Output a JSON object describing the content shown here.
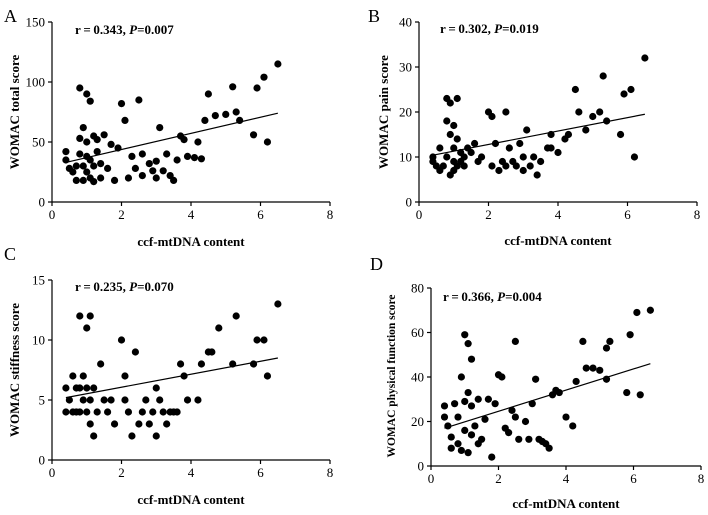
{
  "chart_data": [
    {
      "type": "scatter",
      "panel": "A",
      "annotation": {
        "r": "r = 0.343, ",
        "p_label": "P",
        "p_value": "=0.007"
      },
      "xlabel": "ccf-mtDNA content",
      "ylabel": "WOMAC total score",
      "xlim": [
        0,
        8
      ],
      "ylim": [
        0,
        150
      ],
      "xticks": [
        0,
        2,
        4,
        6,
        8
      ],
      "yticks": [
        0,
        50,
        100,
        150
      ],
      "trend": {
        "x": [
          0.4,
          6.5
        ],
        "y": [
          33,
          74
        ]
      },
      "points": [
        [
          0.4,
          42
        ],
        [
          0.4,
          35
        ],
        [
          0.5,
          28
        ],
        [
          0.6,
          25
        ],
        [
          0.7,
          30
        ],
        [
          0.7,
          18
        ],
        [
          0.8,
          95
        ],
        [
          0.8,
          53
        ],
        [
          0.8,
          40
        ],
        [
          0.9,
          62
        ],
        [
          0.9,
          30
        ],
        [
          0.9,
          18
        ],
        [
          1.0,
          90
        ],
        [
          1.0,
          50
        ],
        [
          1.0,
          38
        ],
        [
          1.0,
          25
        ],
        [
          1.1,
          84
        ],
        [
          1.1,
          35
        ],
        [
          1.1,
          20
        ],
        [
          1.2,
          55
        ],
        [
          1.2,
          30
        ],
        [
          1.2,
          17
        ],
        [
          1.3,
          52
        ],
        [
          1.3,
          42
        ],
        [
          1.4,
          32
        ],
        [
          1.4,
          20
        ],
        [
          1.5,
          56
        ],
        [
          1.6,
          28
        ],
        [
          1.7,
          48
        ],
        [
          1.8,
          18
        ],
        [
          1.9,
          45
        ],
        [
          2.0,
          82
        ],
        [
          2.1,
          68
        ],
        [
          2.2,
          20
        ],
        [
          2.3,
          38
        ],
        [
          2.4,
          28
        ],
        [
          2.5,
          85
        ],
        [
          2.6,
          40
        ],
        [
          2.6,
          22
        ],
        [
          2.8,
          32
        ],
        [
          2.9,
          26
        ],
        [
          3.0,
          34
        ],
        [
          3.0,
          20
        ],
        [
          3.1,
          62
        ],
        [
          3.2,
          26
        ],
        [
          3.3,
          40
        ],
        [
          3.4,
          22
        ],
        [
          3.5,
          18
        ],
        [
          3.6,
          35
        ],
        [
          3.7,
          55
        ],
        [
          3.8,
          52
        ],
        [
          3.9,
          38
        ],
        [
          4.1,
          37
        ],
        [
          4.2,
          50
        ],
        [
          4.3,
          36
        ],
        [
          4.4,
          68
        ],
        [
          4.5,
          90
        ],
        [
          4.7,
          72
        ],
        [
          5.0,
          73
        ],
        [
          5.2,
          96
        ],
        [
          5.3,
          75
        ],
        [
          5.4,
          68
        ],
        [
          5.8,
          56
        ],
        [
          5.9,
          95
        ],
        [
          6.1,
          104
        ],
        [
          6.2,
          50
        ],
        [
          6.5,
          115
        ]
      ]
    },
    {
      "type": "scatter",
      "panel": "B",
      "annotation": {
        "r": "r = 0.302, ",
        "p_label": "P",
        "p_value": "=0.019"
      },
      "xlabel": "ccf-mtDNA content",
      "ylabel": "WOMAC pain score",
      "xlim": [
        0,
        8
      ],
      "ylim": [
        0,
        40
      ],
      "xticks": [
        0,
        2,
        4,
        6,
        8
      ],
      "yticks": [
        0,
        10,
        20,
        30,
        40
      ],
      "trend": {
        "x": [
          0.4,
          6.5
        ],
        "y": [
          10.4,
          19.5
        ]
      },
      "points": [
        [
          0.4,
          9
        ],
        [
          0.4,
          10
        ],
        [
          0.5,
          8
        ],
        [
          0.6,
          12
        ],
        [
          0.6,
          7
        ],
        [
          0.7,
          8
        ],
        [
          0.8,
          23
        ],
        [
          0.8,
          18
        ],
        [
          0.8,
          10
        ],
        [
          0.9,
          22
        ],
        [
          0.9,
          15
        ],
        [
          0.9,
          6
        ],
        [
          1.0,
          17
        ],
        [
          1.0,
          12
        ],
        [
          1.0,
          9
        ],
        [
          1.0,
          7
        ],
        [
          1.1,
          23
        ],
        [
          1.1,
          14
        ],
        [
          1.1,
          8
        ],
        [
          1.2,
          11
        ],
        [
          1.2,
          9
        ],
        [
          1.3,
          10
        ],
        [
          1.3,
          8
        ],
        [
          1.4,
          12
        ],
        [
          1.5,
          11
        ],
        [
          1.6,
          13
        ],
        [
          1.7,
          9
        ],
        [
          1.8,
          10
        ],
        [
          2.0,
          20
        ],
        [
          2.1,
          19
        ],
        [
          2.1,
          8
        ],
        [
          2.2,
          13
        ],
        [
          2.3,
          7
        ],
        [
          2.4,
          9
        ],
        [
          2.5,
          20
        ],
        [
          2.5,
          8
        ],
        [
          2.6,
          12
        ],
        [
          2.7,
          9
        ],
        [
          2.8,
          8
        ],
        [
          2.9,
          13
        ],
        [
          3.0,
          10
        ],
        [
          3.0,
          7
        ],
        [
          3.1,
          16
        ],
        [
          3.2,
          8
        ],
        [
          3.3,
          10
        ],
        [
          3.4,
          6
        ],
        [
          3.5,
          9
        ],
        [
          3.7,
          12
        ],
        [
          3.8,
          15
        ],
        [
          3.8,
          12
        ],
        [
          4.0,
          11
        ],
        [
          4.2,
          14
        ],
        [
          4.3,
          15
        ],
        [
          4.5,
          25
        ],
        [
          4.6,
          20
        ],
        [
          4.8,
          16
        ],
        [
          5.0,
          19
        ],
        [
          5.2,
          20
        ],
        [
          5.3,
          28
        ],
        [
          5.4,
          18
        ],
        [
          5.8,
          15
        ],
        [
          5.9,
          24
        ],
        [
          6.1,
          25
        ],
        [
          6.2,
          10
        ],
        [
          6.5,
          32
        ]
      ]
    },
    {
      "type": "scatter",
      "panel": "C",
      "annotation": {
        "r": "r = 0.235, ",
        "p_label": "P",
        "p_value": "=0.070"
      },
      "xlabel": "ccf-mtDNA content",
      "ylabel": "WOMAC stiffness score",
      "xlim": [
        0,
        8
      ],
      "ylim": [
        0,
        15
      ],
      "xticks": [
        0,
        2,
        4,
        6,
        8
      ],
      "yticks": [
        0,
        5,
        10,
        15
      ],
      "trend": {
        "x": [
          0.4,
          6.5
        ],
        "y": [
          5.2,
          8.5
        ]
      },
      "points": [
        [
          0.4,
          6
        ],
        [
          0.4,
          4
        ],
        [
          0.5,
          5
        ],
        [
          0.6,
          7
        ],
        [
          0.6,
          4
        ],
        [
          0.7,
          6
        ],
        [
          0.7,
          4
        ],
        [
          0.8,
          12
        ],
        [
          0.8,
          6
        ],
        [
          0.8,
          4
        ],
        [
          0.9,
          7
        ],
        [
          0.9,
          5
        ],
        [
          1.0,
          11
        ],
        [
          1.0,
          6
        ],
        [
          1.0,
          4
        ],
        [
          1.1,
          12
        ],
        [
          1.1,
          5
        ],
        [
          1.1,
          3
        ],
        [
          1.2,
          6
        ],
        [
          1.2,
          2
        ],
        [
          1.3,
          4
        ],
        [
          1.4,
          8
        ],
        [
          1.5,
          5
        ],
        [
          1.6,
          4
        ],
        [
          1.7,
          5
        ],
        [
          1.8,
          3
        ],
        [
          2.0,
          10
        ],
        [
          2.1,
          7
        ],
        [
          2.1,
          5
        ],
        [
          2.2,
          4
        ],
        [
          2.3,
          2
        ],
        [
          2.4,
          9
        ],
        [
          2.5,
          3
        ],
        [
          2.6,
          4
        ],
        [
          2.7,
          5
        ],
        [
          2.8,
          3
        ],
        [
          2.9,
          4
        ],
        [
          3.0,
          2
        ],
        [
          3.0,
          6
        ],
        [
          3.1,
          5
        ],
        [
          3.2,
          4
        ],
        [
          3.3,
          3
        ],
        [
          3.4,
          4
        ],
        [
          3.5,
          4
        ],
        [
          3.6,
          4
        ],
        [
          3.7,
          8
        ],
        [
          3.8,
          7
        ],
        [
          3.9,
          5
        ],
        [
          4.2,
          5
        ],
        [
          4.3,
          8
        ],
        [
          4.5,
          9
        ],
        [
          4.6,
          9
        ],
        [
          4.8,
          11
        ],
        [
          5.2,
          8
        ],
        [
          5.3,
          12
        ],
        [
          5.8,
          8
        ],
        [
          5.9,
          10
        ],
        [
          6.1,
          10
        ],
        [
          6.2,
          7
        ],
        [
          6.5,
          13
        ]
      ]
    },
    {
      "type": "scatter",
      "panel": "D",
      "annotation": {
        "r": "r = 0.366, ",
        "p_label": "P",
        "p_value": "=0.004"
      },
      "xlabel": "ccf-mtDNA content",
      "ylabel": "WOMAC physical function score",
      "xlim": [
        0,
        8
      ],
      "ylim": [
        0,
        80
      ],
      "xticks": [
        0,
        2,
        4,
        6,
        8
      ],
      "yticks": [
        0,
        20,
        40,
        60,
        80
      ],
      "trend": {
        "x": [
          0.4,
          6.5
        ],
        "y": [
          17,
          46
        ]
      },
      "points": [
        [
          0.4,
          27
        ],
        [
          0.4,
          22
        ],
        [
          0.5,
          18
        ],
        [
          0.6,
          8
        ],
        [
          0.6,
          13
        ],
        [
          0.7,
          28
        ],
        [
          0.8,
          10
        ],
        [
          0.8,
          22
        ],
        [
          0.9,
          40
        ],
        [
          0.9,
          7
        ],
        [
          1.0,
          59
        ],
        [
          1.0,
          29
        ],
        [
          1.0,
          16
        ],
        [
          1.1,
          55
        ],
        [
          1.1,
          33
        ],
        [
          1.1,
          6
        ],
        [
          1.2,
          48
        ],
        [
          1.2,
          27
        ],
        [
          1.2,
          14
        ],
        [
          1.3,
          18
        ],
        [
          1.4,
          30
        ],
        [
          1.4,
          10
        ],
        [
          1.5,
          12
        ],
        [
          1.6,
          21
        ],
        [
          1.7,
          30
        ],
        [
          1.8,
          4
        ],
        [
          1.9,
          28
        ],
        [
          2.0,
          41
        ],
        [
          2.1,
          40
        ],
        [
          2.2,
          17
        ],
        [
          2.3,
          15
        ],
        [
          2.4,
          25
        ],
        [
          2.5,
          56
        ],
        [
          2.5,
          22
        ],
        [
          2.6,
          12
        ],
        [
          2.8,
          20
        ],
        [
          2.9,
          12
        ],
        [
          3.0,
          28
        ],
        [
          3.1,
          39
        ],
        [
          3.2,
          12
        ],
        [
          3.3,
          11
        ],
        [
          3.4,
          10
        ],
        [
          3.5,
          8
        ],
        [
          3.6,
          32
        ],
        [
          3.7,
          34
        ],
        [
          3.8,
          33
        ],
        [
          4.0,
          22
        ],
        [
          4.2,
          18
        ],
        [
          4.3,
          38
        ],
        [
          4.5,
          56
        ],
        [
          4.6,
          44
        ],
        [
          4.8,
          44
        ],
        [
          5.0,
          43
        ],
        [
          5.2,
          39
        ],
        [
          5.2,
          53
        ],
        [
          5.3,
          56
        ],
        [
          5.8,
          33
        ],
        [
          5.9,
          59
        ],
        [
          6.1,
          69
        ],
        [
          6.2,
          32
        ],
        [
          6.5,
          70
        ]
      ]
    }
  ]
}
